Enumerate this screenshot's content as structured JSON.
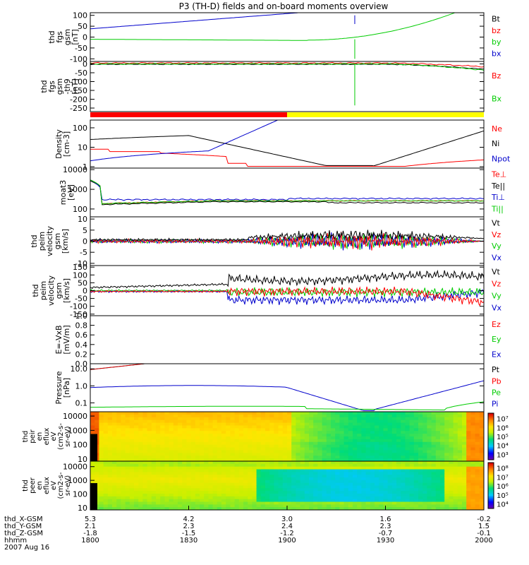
{
  "title": "P3 (TH-D) fields and on-board moments overview",
  "chart_data": {
    "type": "line",
    "x_range": [
      "18:00",
      "20:00"
    ],
    "status_bar": [
      {
        "label": "",
        "color": "#ff0000",
        "from": 0.0,
        "to": 0.5
      },
      {
        "label": "",
        "color": "#ffff00",
        "from": 0.5,
        "to": 1.0
      }
    ],
    "panels": [
      {
        "ylabel": [
          "thd",
          "fgs",
          "gsm",
          "[nT]"
        ],
        "ticks": [
          "100",
          "50",
          "0",
          "-50",
          "-100"
        ],
        "tick_values": [
          100,
          50,
          0,
          -50,
          -100
        ],
        "ylim": [
          -112,
          112
        ],
        "log": false,
        "legend": [
          {
            "label": "Bt",
            "color": "#000000"
          },
          {
            "label": "bz",
            "color": "#ff0000"
          },
          {
            "label": "by",
            "color": "#00cc00"
          },
          {
            "label": "bx",
            "color": "#0000cc"
          }
        ]
      },
      {
        "ylabel": [
          "thd",
          "fgs",
          "gsm",
          "-th9",
          "[nT]"
        ],
        "ticks": [
          "0",
          "-50",
          "-100",
          "-150",
          "-200",
          "-250"
        ],
        "tick_values": [
          0,
          -50,
          -100,
          -150,
          -200,
          -250
        ],
        "ylim": [
          -270,
          14
        ],
        "log": false,
        "legend": [
          {
            "label": "Bz",
            "color": "#ff0000"
          },
          {
            "label": "Bx",
            "color": "#00cc00"
          }
        ]
      },
      {
        "ylabel": [
          "Density",
          "[cm-3]"
        ],
        "ticks": [
          "100",
          "10",
          "1"
        ],
        "tick_values": [
          100,
          10,
          1
        ],
        "ylim": [
          0.85,
          250
        ],
        "log": true,
        "legend": [
          {
            "label": "Ne",
            "color": "#ff0000"
          },
          {
            "label": "Ni",
            "color": "#000000"
          },
          {
            "label": "Npot",
            "color": "#0000cc"
          }
        ]
      },
      {
        "ylabel": [
          "moat3",
          "[eV]"
        ],
        "ticks": [
          "10000",
          "1000",
          "100"
        ],
        "tick_values": [
          10000,
          1000,
          100
        ],
        "ylim": [
          40,
          12000
        ],
        "log": true,
        "legend": [
          {
            "label": "Te⊥",
            "color": "#ff0000"
          },
          {
            "label": "Te||",
            "color": "#000000"
          },
          {
            "label": "Ti⊥",
            "color": "#0000cc"
          },
          {
            "label": "Ti||",
            "color": "#00cc00"
          }
        ]
      },
      {
        "ylabel": [
          "thd",
          "peim",
          "velocity",
          "gsm",
          "[km/s]"
        ],
        "ticks": [
          "10",
          "5",
          "0",
          "-5",
          "-10"
        ],
        "tick_values": [
          10,
          5,
          0,
          -5,
          -10
        ],
        "ylim": [
          -11,
          11
        ],
        "log": false,
        "legend": [
          {
            "label": "Vt",
            "color": "#000000"
          },
          {
            "label": "Vz",
            "color": "#ff0000"
          },
          {
            "label": "Vy",
            "color": "#00cc00"
          },
          {
            "label": "Vx",
            "color": "#0000cc"
          }
        ]
      },
      {
        "ylabel": [
          "thd",
          "peim",
          "velocity",
          "gsm",
          "[km/s]"
        ],
        "ticks": [
          "150",
          "100",
          "50",
          "0",
          "-50",
          "-100",
          "-150"
        ],
        "tick_values": [
          150,
          100,
          50,
          0,
          -50,
          -100,
          -150
        ],
        "ylim": [
          -160,
          160
        ],
        "log": false,
        "legend": [
          {
            "label": "Vt",
            "color": "#000000"
          },
          {
            "label": "Vz",
            "color": "#ff0000"
          },
          {
            "label": "Vy",
            "color": "#00cc00"
          },
          {
            "label": "Vx",
            "color": "#0000cc"
          }
        ]
      },
      {
        "ylabel": [
          "E=-VxB",
          "[mV/m]"
        ],
        "ticks": [
          "1.0",
          "0.8",
          "0.6",
          "0.4",
          "0.2",
          "0.0"
        ],
        "tick_values": [
          1.0,
          0.8,
          0.6,
          0.4,
          0.2,
          0.0
        ],
        "ylim": [
          0,
          1
        ],
        "log": false,
        "legend": [
          {
            "label": "Ez",
            "color": "#ff0000"
          },
          {
            "label": "Ey",
            "color": "#00cc00"
          },
          {
            "label": "Ex",
            "color": "#0000cc"
          }
        ]
      },
      {
        "ylabel": [
          "Pressure",
          "[nPa]"
        ],
        "ticks": [
          "10.0",
          "1.0",
          "0.1"
        ],
        "tick_values": [
          10,
          1,
          0.1
        ],
        "ylim": [
          0.03,
          20
        ],
        "log": true,
        "legend": [
          {
            "label": "Pt",
            "color": "#000000"
          },
          {
            "label": "Pb",
            "color": "#ff0000"
          },
          {
            "label": "Pe",
            "color": "#00cc00"
          },
          {
            "label": "Pi",
            "color": "#0000cc"
          }
        ]
      }
    ],
    "spectrograms": [
      {
        "ylabel": [
          "thd",
          "peir",
          "en",
          "eflux",
          "eV",
          "(cm2-s-",
          "sr-eV)"
        ],
        "ticks": [
          "10000",
          "1000",
          "100",
          "10"
        ],
        "tick_values": [
          10000,
          1000,
          100,
          10
        ],
        "ylim": [
          7,
          20000
        ],
        "colorbar_ticks": [
          "10⁷",
          "10⁶",
          "10⁵",
          "10⁴",
          "10³"
        ],
        "colorbar_values": [
          7,
          6,
          5,
          4,
          3
        ],
        "colorbar_range": [
          2.4,
          7.6
        ]
      },
      {
        "ylabel": [
          "thd",
          "peer",
          "en",
          "eflux",
          "eV",
          "(cm2-s-",
          "sr-eV)"
        ],
        "ticks": [
          "10000",
          "1000",
          "100",
          "10"
        ],
        "tick_values": [
          10000,
          1000,
          100,
          10
        ],
        "ylim": [
          7,
          25000
        ],
        "colorbar_ticks": [
          "10⁸",
          "10⁷",
          "10⁶",
          "10⁵",
          "10⁴"
        ],
        "colorbar_values": [
          8,
          7,
          6,
          5,
          4
        ],
        "colorbar_range": [
          3.5,
          8.6
        ]
      }
    ],
    "x_axis": {
      "row_labels": [
        "thd_X-GSM",
        "thd_Y-GSM",
        "thd_Z-GSM",
        "hhmm",
        "2007 Aug 16"
      ],
      "ticks": [
        {
          "x": "5.3",
          "y": "2.1",
          "z": "-1.8",
          "hhmm": "1800"
        },
        {
          "x": "4.2",
          "y": "2.3",
          "z": "-1.5",
          "hhmm": "1830"
        },
        {
          "x": "3.0",
          "y": "2.4",
          "z": "-1.2",
          "hhmm": "1900"
        },
        {
          "x": "1.6",
          "y": "2.3",
          "z": "-0.7",
          "hhmm": "1930"
        },
        {
          "x": "-0.2",
          "y": "1.5",
          "z": "-0.1",
          "hhmm": "2000"
        }
      ]
    }
  }
}
